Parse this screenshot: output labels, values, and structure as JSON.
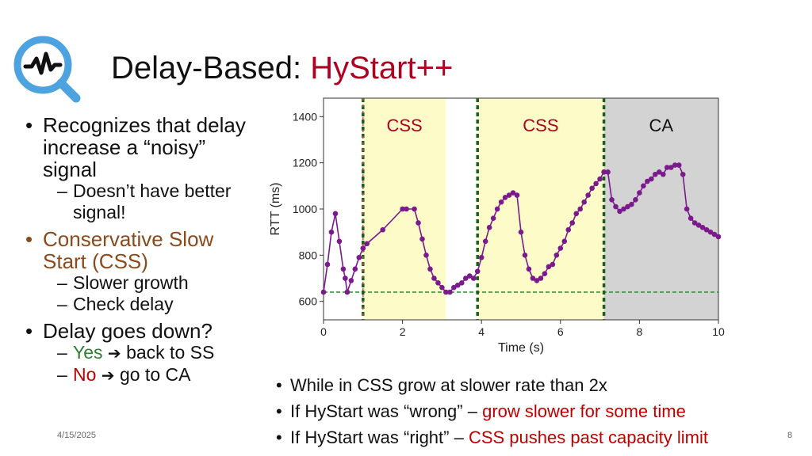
{
  "slide": {
    "title_plain": "Delay-Based: ",
    "title_accent": "HyStart++",
    "date": "4/15/2025",
    "page_number": "8"
  },
  "bullets": {
    "b1": "Recognizes that delay increase a “noisy” signal",
    "b1_sub1": "Doesn’t have better signal!",
    "b2": "Conservative Slow Start (CSS)",
    "b2_sub1": "Slower growth",
    "b2_sub2": "Check delay",
    "b3": "Delay goes down?",
    "b3_sub1_label": "Yes",
    "b3_sub1_rest": "back to SS",
    "b3_sub2_label": "No",
    "b3_sub2_rest": "go to CA"
  },
  "notes": {
    "n1": "While in CSS grow at slower rate than 2x",
    "n2_prefix": "If HyStart was “wrong” – ",
    "n2_red": "grow slower for some time",
    "n3_prefix": "If HyStart was “right” – ",
    "n3_red": "CSS pushes past capacity limit"
  },
  "colors": {
    "accent_red": "#b00020",
    "css_region": "#fdfbc8",
    "ca_region": "#d3d3d3",
    "series": "#7b1a8c",
    "marker_green": "#1f5d1f",
    "marker_red": "#d9534f",
    "baseline": "#2e8b2e"
  },
  "chart_data": {
    "type": "scatter",
    "xlabel": "Time (s)",
    "ylabel": "RTT (ms)",
    "xlim": [
      0,
      10
    ],
    "ylim": [
      520,
      1480
    ],
    "xticks": [
      0,
      2,
      4,
      6,
      8,
      10
    ],
    "yticks": [
      600,
      800,
      1000,
      1200,
      1400
    ],
    "regions": [
      {
        "label": "CSS",
        "x0": 1.0,
        "x1": 3.1,
        "color": "#fdfbc8"
      },
      {
        "label": "CSS",
        "x0": 3.9,
        "x1": 7.1,
        "color": "#fdfbc8"
      },
      {
        "label": "CA",
        "x0": 7.1,
        "x1": 10.0,
        "color": "#d3d3d3"
      }
    ],
    "event_lines": [
      1.0,
      3.9,
      7.1
    ],
    "baseline_rtt": 640,
    "series": [
      {
        "name": "RTT",
        "x": [
          0.0,
          0.1,
          0.2,
          0.3,
          0.4,
          0.5,
          0.55,
          0.6,
          0.7,
          0.8,
          0.9,
          1.0,
          1.1,
          1.5,
          2.0,
          2.1,
          2.3,
          2.4,
          2.5,
          2.6,
          2.7,
          2.8,
          2.9,
          3.0,
          3.1,
          3.2,
          3.3,
          3.4,
          3.5,
          3.6,
          3.7,
          3.8,
          3.9,
          4.0,
          4.1,
          4.2,
          4.3,
          4.4,
          4.5,
          4.6,
          4.7,
          4.8,
          4.9,
          5.0,
          5.1,
          5.2,
          5.3,
          5.4,
          5.5,
          5.6,
          5.7,
          5.8,
          5.9,
          6.0,
          6.1,
          6.2,
          6.3,
          6.4,
          6.5,
          6.6,
          6.7,
          6.8,
          6.9,
          7.0,
          7.1,
          7.2,
          7.3,
          7.4,
          7.5,
          7.6,
          7.7,
          7.8,
          7.9,
          8.0,
          8.1,
          8.2,
          8.3,
          8.4,
          8.5,
          8.6,
          8.7,
          8.8,
          8.9,
          9.0,
          9.1,
          9.2,
          9.3,
          9.4,
          9.5,
          9.6,
          9.7,
          9.8,
          9.9,
          10.0
        ],
        "y": [
          640,
          760,
          900,
          980,
          860,
          740,
          700,
          640,
          690,
          740,
          790,
          830,
          850,
          910,
          1000,
          1000,
          1000,
          940,
          870,
          800,
          740,
          700,
          680,
          660,
          640,
          640,
          660,
          670,
          680,
          700,
          710,
          700,
          730,
          790,
          860,
          920,
          960,
          1000,
          1030,
          1050,
          1060,
          1070,
          1060,
          900,
          800,
          740,
          700,
          690,
          700,
          720,
          750,
          760,
          800,
          830,
          860,
          910,
          940,
          980,
          1000,
          1030,
          1060,
          1090,
          1110,
          1130,
          1160,
          1160,
          1040,
          1010,
          990,
          1000,
          1010,
          1020,
          1040,
          1070,
          1100,
          1120,
          1130,
          1150,
          1160,
          1150,
          1180,
          1180,
          1190,
          1190,
          1150,
          1000,
          960,
          940,
          930,
          920,
          910,
          900,
          890,
          880
        ]
      }
    ]
  }
}
